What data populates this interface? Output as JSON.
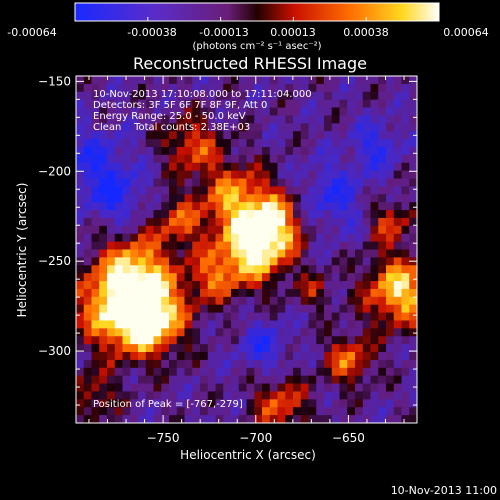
{
  "colorbar": {
    "ticks": [
      "-0.00064",
      "-0.00038",
      "-0.00013",
      "0.00013",
      "0.00038",
      "0.00064"
    ],
    "unit_label": "(photons cm⁻² s⁻¹ asec⁻²)",
    "range": [
      -0.00064,
      0.00064
    ]
  },
  "chart_data": {
    "type": "heatmap",
    "title": "Reconstructed RHESSI Image",
    "xlabel": "Heliocentric X (arcsec)",
    "ylabel": "Heliocentric Y (arcsec)",
    "xlim": [
      -797,
      -613
    ],
    "ylim": [
      -340,
      -147
    ],
    "xticks": [
      -750,
      -700,
      -650
    ],
    "yticks": [
      -150,
      -200,
      -250,
      -300
    ],
    "xtick_labels": [
      "−750",
      "−700",
      "−650"
    ],
    "ytick_labels": [
      "−150",
      "−200",
      "−250",
      "−300"
    ],
    "colormap": "rainbow-like: blue, violet, red, orange, yellow, white",
    "annotations": [
      "10-Nov-2013 17:10:08.000 to 17:11:04.000",
      "Detectors: 3F 5F 6F 7F 8F 9F, Att 0",
      "Energy Range: 25.0 - 50.0 keV",
      "Clean    Total counts: 2.38E+03"
    ],
    "peak_label": "Position of Peak = [-767,-279]",
    "peak_position": [
      -767,
      -279
    ]
  },
  "footer": {
    "timestamp": "10-Nov-2013 11:00"
  }
}
